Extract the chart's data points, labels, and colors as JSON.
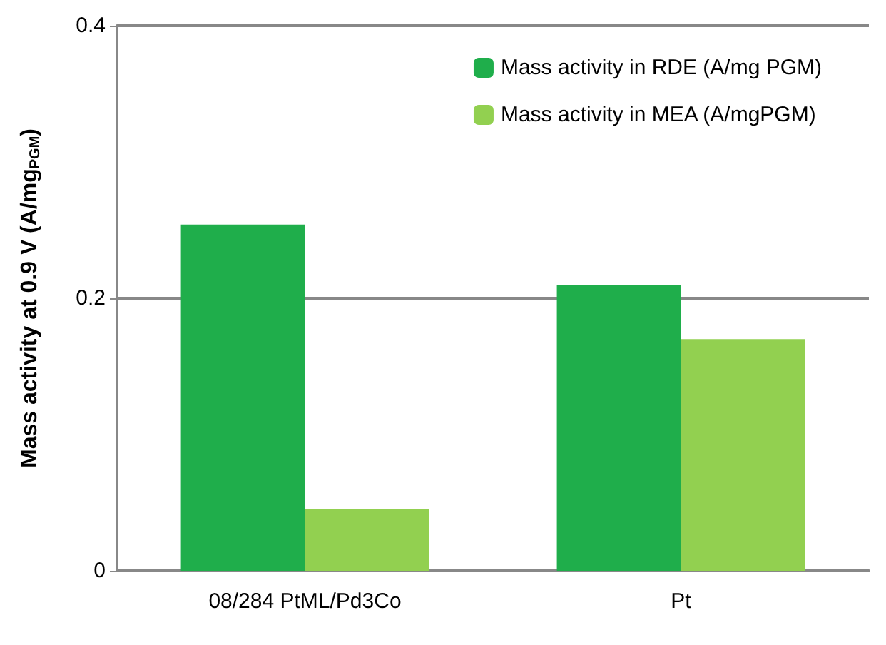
{
  "chart_data": {
    "type": "bar",
    "ylabel": "Mass activity at 0.9 V (A/mg$_{PGM}$)",
    "categories": [
      "08/284 PtML/Pd3Co",
      "Pt"
    ],
    "series": [
      {
        "name": "Mass activity in RDE (A/mg PGM)",
        "color": "#1fae4b",
        "values": [
          0.254,
          0.21
        ]
      },
      {
        "name": "Mass activity in MEA (A/mgPGM)",
        "color": "#92d050",
        "values": [
          0.045,
          0.17
        ]
      }
    ],
    "ylim": [
      0,
      0.4
    ],
    "yticks": [
      0,
      0.2,
      0.4
    ],
    "grid": "y",
    "legend": "top right"
  }
}
